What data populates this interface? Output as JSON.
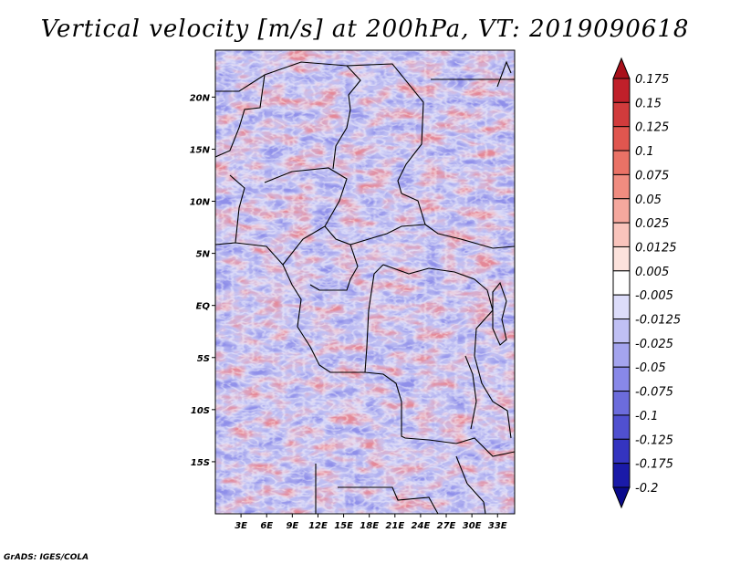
{
  "chart_data": {
    "type": "heatmap",
    "title": "Vertical velocity [m/s] at 200hPa, VT: 2019090618",
    "variable": "Vertical velocity",
    "units": "m/s",
    "level": "200hPa",
    "valid_time": "2019090618",
    "xlabel": "",
    "ylabel": "",
    "lon_range": [
      0,
      35
    ],
    "lat_range": [
      -20,
      24.5
    ],
    "x_ticks": [
      "3E",
      "6E",
      "9E",
      "12E",
      "15E",
      "18E",
      "21E",
      "24E",
      "27E",
      "30E",
      "33E"
    ],
    "x_tick_values": [
      3,
      6,
      9,
      12,
      15,
      18,
      21,
      24,
      27,
      30,
      33
    ],
    "y_ticks": [
      "20N",
      "15N",
      "10N",
      "5N",
      "EQ",
      "5S",
      "10S",
      "15S"
    ],
    "y_tick_values": [
      20,
      15,
      10,
      5,
      0,
      -5,
      -10,
      -15
    ],
    "colorbar_labels": [
      "0.175",
      "0.15",
      "0.125",
      "0.1",
      "0.075",
      "0.05",
      "0.025",
      "0.0125",
      "0.005",
      "-0.005",
      "-0.0125",
      "-0.025",
      "-0.05",
      "-0.075",
      "-0.1",
      "-0.125",
      "-0.175",
      "-0.2"
    ],
    "colorbar_colors": [
      "#a8101a",
      "#c0202a",
      "#d13b3c",
      "#e0564f",
      "#ea7266",
      "#f08c80",
      "#f5a89e",
      "#f9c4bc",
      "#fce2dc",
      "#ffffff",
      "#dcdcfa",
      "#c0c0f4",
      "#a4a4ee",
      "#8888e8",
      "#6c6cdc",
      "#5050d0",
      "#3434c0",
      "#1a1aa8",
      "#0a0a8c"
    ],
    "colorbar_orientation": "vertical-right",
    "grid": false
  },
  "credit": "GrADS: IGES/COLA"
}
